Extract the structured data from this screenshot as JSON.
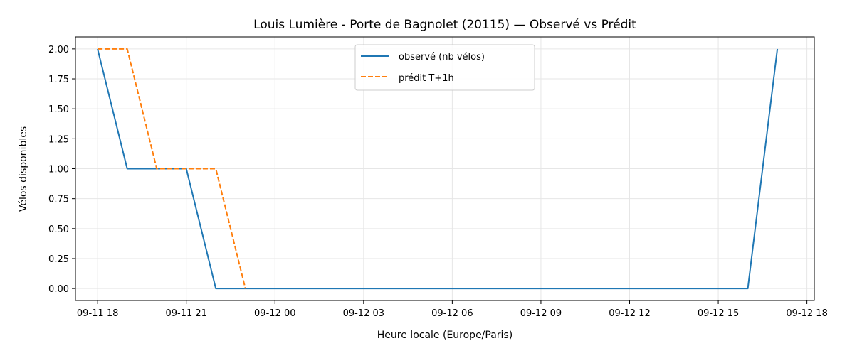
{
  "chart_data": {
    "type": "line",
    "title": "Louis Lumière - Porte de Bagnolet (20115) — Observé vs Prédit",
    "xlabel": "Heure locale (Europe/Paris)",
    "ylabel": "Vélos disponibles",
    "x_tick_labels": [
      "09-11 18",
      "09-11 21",
      "09-12 00",
      "09-12 03",
      "09-12 06",
      "09-12 09",
      "09-12 12",
      "09-12 15",
      "09-12 18"
    ],
    "x_ticks": [
      "2025-09-11T18:00",
      "2025-09-11T21:00",
      "2025-09-12T00:00",
      "2025-09-12T03:00",
      "2025-09-12T06:00",
      "2025-09-12T09:00",
      "2025-09-12T12:00",
      "2025-09-12T15:00",
      "2025-09-12T18:00"
    ],
    "xlim": [
      "2025-09-11T17:15",
      "2025-09-12T18:15"
    ],
    "y_tick_labels": [
      "0.00",
      "0.25",
      "0.50",
      "0.75",
      "1.00",
      "1.25",
      "1.50",
      "1.75",
      "2.00"
    ],
    "y_ticks": [
      0,
      0.25,
      0.5,
      0.75,
      1.0,
      1.25,
      1.5,
      1.75,
      2.0
    ],
    "ylim": [
      -0.1,
      2.1
    ],
    "grid": true,
    "legend_position": "top-center",
    "series": [
      {
        "name": "observé (nb vélos)",
        "color": "#1f77b4",
        "style": "solid",
        "points": [
          {
            "x": "2025-09-11T18:00",
            "y": 2
          },
          {
            "x": "2025-09-11T19:00",
            "y": 1
          },
          {
            "x": "2025-09-11T20:00",
            "y": 1
          },
          {
            "x": "2025-09-11T21:00",
            "y": 1
          },
          {
            "x": "2025-09-11T22:00",
            "y": 0
          },
          {
            "x": "2025-09-11T23:00",
            "y": 0
          },
          {
            "x": "2025-09-12T00:00",
            "y": 0
          },
          {
            "x": "2025-09-12T01:00",
            "y": 0
          },
          {
            "x": "2025-09-12T02:00",
            "y": 0
          },
          {
            "x": "2025-09-12T03:00",
            "y": 0
          },
          {
            "x": "2025-09-12T04:00",
            "y": 0
          },
          {
            "x": "2025-09-12T05:00",
            "y": 0
          },
          {
            "x": "2025-09-12T06:00",
            "y": 0
          },
          {
            "x": "2025-09-12T07:00",
            "y": 0
          },
          {
            "x": "2025-09-12T08:00",
            "y": 0
          },
          {
            "x": "2025-09-12T09:00",
            "y": 0
          },
          {
            "x": "2025-09-12T10:00",
            "y": 0
          },
          {
            "x": "2025-09-12T11:00",
            "y": 0
          },
          {
            "x": "2025-09-12T12:00",
            "y": 0
          },
          {
            "x": "2025-09-12T13:00",
            "y": 0
          },
          {
            "x": "2025-09-12T14:00",
            "y": 0
          },
          {
            "x": "2025-09-12T15:00",
            "y": 0
          },
          {
            "x": "2025-09-12T16:00",
            "y": 0
          },
          {
            "x": "2025-09-12T17:00",
            "y": 2
          }
        ]
      },
      {
        "name": "prédit T+1h",
        "color": "#ff7f0e",
        "style": "dashed",
        "points": [
          {
            "x": "2025-09-11T18:00",
            "y": 2
          },
          {
            "x": "2025-09-11T19:00",
            "y": 2
          },
          {
            "x": "2025-09-11T20:00",
            "y": 1
          },
          {
            "x": "2025-09-11T21:00",
            "y": 1
          },
          {
            "x": "2025-09-11T22:00",
            "y": 1
          },
          {
            "x": "2025-09-11T23:00",
            "y": 0
          }
        ]
      }
    ]
  }
}
